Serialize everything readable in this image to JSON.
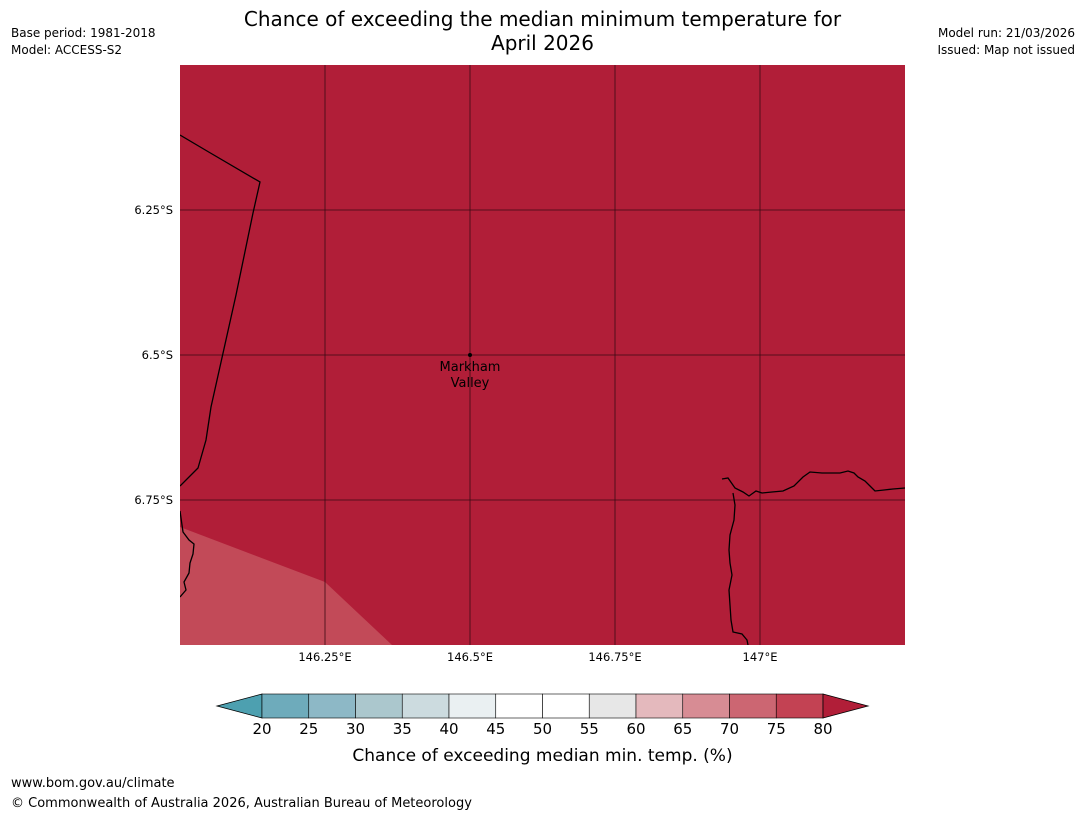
{
  "title": {
    "line1": "Chance of exceeding the median minimum temperature for",
    "line2": "April 2026"
  },
  "meta": {
    "base_period": "Base period: 1981-2018",
    "model": "Model: ACCESS-S2",
    "model_run": "Model run: 21/03/2026",
    "issued": "Issued: Map not issued"
  },
  "map": {
    "background_color": "#b11e38",
    "lower_region_color": "#c24a58",
    "coast_color": "#000000",
    "grid_color": "#3a0a14",
    "place": {
      "name_line1": "Markham",
      "name_line2": "Valley"
    },
    "lat_labels": [
      "6.25°S",
      "6.5°S",
      "6.75°S"
    ],
    "lon_labels": [
      "146.25°E",
      "146.5°E",
      "146.75°E",
      "147°E"
    ]
  },
  "colorbar": {
    "ticks": [
      "20",
      "25",
      "30",
      "35",
      "40",
      "45",
      "50",
      "55",
      "60",
      "65",
      "70",
      "75",
      "80"
    ],
    "segment_colors": [
      "#6eabbb",
      "#8db8c6",
      "#abc7cd",
      "#ccdbdf",
      "#eaf0f2",
      "#ffffff",
      "#ffffff",
      "#e7e7e7",
      "#e4b9bd",
      "#d78c94",
      "#cc6672",
      "#c34253"
    ],
    "left_extend_color": "#4da0b0",
    "right_extend_color": "#b11e38",
    "label": "Chance of exceeding median min. temp. (%)"
  },
  "footer": {
    "url": "www.bom.gov.au/climate",
    "copyright": "© Commonwealth of Australia 2026, Australian Bureau of Meteorology"
  }
}
